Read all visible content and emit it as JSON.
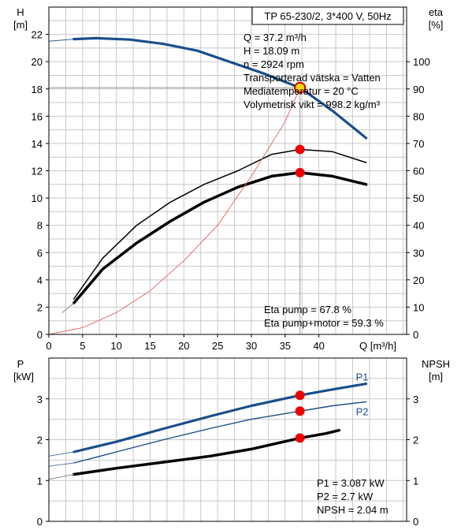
{
  "chart_data": [
    {
      "type": "line",
      "title": "TP 65-230/2, 3*400 V, 50Hz",
      "xlabel": "Q [m³/h]",
      "ylabel_left": [
        "H",
        "[m]"
      ],
      "ylabel_right": [
        "eta",
        "[%]"
      ],
      "xlim": [
        0,
        53
      ],
      "ylim_left": [
        0,
        24
      ],
      "ylim_right": [
        0,
        120
      ],
      "x_ticks": [
        0,
        5,
        10,
        15,
        20,
        25,
        30,
        35,
        40
      ],
      "y_ticks_left": [
        0,
        2,
        4,
        6,
        8,
        10,
        12,
        14,
        16,
        18,
        20,
        22
      ],
      "y_ticks_right": [
        0,
        10,
        20,
        30,
        40,
        50,
        60,
        70,
        80,
        90,
        100
      ],
      "grid": true,
      "series": [
        {
          "axis": "left",
          "color": "#1a4f8a",
          "width": 3.2,
          "points": [
            [
              3.7,
              21.65
            ],
            [
              7,
              21.72
            ],
            [
              12,
              21.62
            ],
            [
              17,
              21.3
            ],
            [
              22,
              20.8
            ],
            [
              27,
              19.95
            ],
            [
              32,
              19.1
            ],
            [
              37.2,
              18.09
            ],
            [
              42,
              16.4
            ],
            [
              47,
              14.4
            ]
          ]
        },
        {
          "axis": "left",
          "color": "#2b5f9c",
          "width": 1.0,
          "points": [
            [
              0,
              21.5
            ],
            [
              3.7,
              21.65
            ]
          ]
        },
        {
          "axis": "left",
          "color": "#888888",
          "width": 0.8,
          "points": [
            [
              0,
              18.09
            ],
            [
              37.2,
              18.09
            ]
          ]
        },
        {
          "axis": "right",
          "color": "#000000",
          "width": 1.5,
          "points": [
            [
              3.7,
              13
            ],
            [
              8,
              28
            ],
            [
              13,
              40
            ],
            [
              18,
              48.5
            ],
            [
              23,
              55
            ],
            [
              28,
              60
            ],
            [
              33,
              66
            ],
            [
              37.2,
              67.8
            ],
            [
              42,
              67
            ],
            [
              47,
              63
            ]
          ]
        },
        {
          "axis": "right",
          "color": "#000000",
          "width": 3.5,
          "points": [
            [
              3.7,
              11.5
            ],
            [
              8,
              24
            ],
            [
              13,
              33.5
            ],
            [
              18,
              41.5
            ],
            [
              23,
              48.5
            ],
            [
              28,
              54
            ],
            [
              33,
              58
            ],
            [
              37.2,
              59.3
            ],
            [
              42,
              58
            ],
            [
              47,
              55
            ]
          ]
        },
        {
          "axis": "right",
          "color": "#888888",
          "width": 1.0,
          "points": [
            [
              2,
              8
            ],
            [
              3.7,
              11.5
            ]
          ]
        },
        {
          "axis": "right",
          "color": "#e06060",
          "width": 0.9,
          "points": [
            [
              0,
              0
            ],
            [
              5,
              2.5
            ],
            [
              10,
              8
            ],
            [
              15,
              16
            ],
            [
              20,
              27
            ],
            [
              25,
              40
            ],
            [
              30,
              58
            ],
            [
              35,
              78
            ],
            [
              37.2,
              90.5
            ]
          ]
        },
        {
          "axis": "right",
          "color": "#888888",
          "width": 0.8,
          "points": [
            [
              37.2,
              90.5
            ],
            [
              37.2,
              0
            ]
          ]
        }
      ],
      "markers": [
        {
          "axis": "left",
          "x": 37.2,
          "y": 18.09,
          "style": "yellow"
        },
        {
          "axis": "right",
          "x": 37.2,
          "y": 67.8,
          "style": "red"
        },
        {
          "axis": "right",
          "x": 37.2,
          "y": 59.3,
          "style": "red"
        }
      ],
      "info_lines": [
        "Q = 37.2 m³/h",
        "H = 18.09 m",
        "n = 2924 rpm",
        "Transporterad vätska = Vatten",
        "Mediatemperatur = 20 °C",
        "Volymetrisk vikt = 998.2 kg/m³"
      ],
      "eta_lines": [
        "Eta pump = 67.8 %",
        "Eta pump+motor = 59.3 %"
      ]
    },
    {
      "type": "line",
      "ylabel_left": [
        "P",
        "[kW]"
      ],
      "ylabel_right": [
        "NPSH",
        "[m]"
      ],
      "xlim": [
        0,
        53
      ],
      "ylim_left": [
        0,
        4.0
      ],
      "ylim_right": [
        0,
        4.0
      ],
      "y_ticks_left": [
        0,
        1,
        2,
        3
      ],
      "y_ticks_right": [
        0,
        1,
        2,
        3
      ],
      "grid": true,
      "series": [
        {
          "name": "P1",
          "axis": "left",
          "color": "#1a4f8a",
          "width": 3.2,
          "points": [
            [
              3.7,
              1.7
            ],
            [
              10,
              1.95
            ],
            [
              17,
              2.27
            ],
            [
              24,
              2.58
            ],
            [
              30,
              2.83
            ],
            [
              37.2,
              3.087
            ],
            [
              42,
              3.23
            ],
            [
              47,
              3.37
            ]
          ]
        },
        {
          "axis": "left",
          "color": "#5a7fb0",
          "width": 1.0,
          "points": [
            [
              0,
              1.6
            ],
            [
              3.7,
              1.7
            ]
          ]
        },
        {
          "name": "P2",
          "axis": "left",
          "color": "#1a4f8a",
          "width": 1.4,
          "points": [
            [
              3.7,
              1.43
            ],
            [
              10,
              1.7
            ],
            [
              17,
              2.0
            ],
            [
              24,
              2.28
            ],
            [
              30,
              2.5
            ],
            [
              37.2,
              2.7
            ],
            [
              42,
              2.83
            ],
            [
              47,
              2.93
            ]
          ]
        },
        {
          "axis": "left",
          "color": "#5a7fb0",
          "width": 1.0,
          "points": [
            [
              0,
              1.35
            ],
            [
              3.7,
              1.43
            ]
          ]
        },
        {
          "axis": "right",
          "color": "#000000",
          "width": 3.5,
          "points": [
            [
              3.7,
              1.15
            ],
            [
              10,
              1.3
            ],
            [
              17,
              1.45
            ],
            [
              24,
              1.6
            ],
            [
              30,
              1.77
            ],
            [
              37.2,
              2.04
            ],
            [
              41,
              2.15
            ],
            [
              43,
              2.23
            ]
          ]
        },
        {
          "axis": "right",
          "color": "#888888",
          "width": 1.0,
          "points": [
            [
              0,
              1.03
            ],
            [
              3.7,
              1.15
            ]
          ]
        }
      ],
      "series_labels": [
        {
          "text": "P1",
          "x": 47,
          "y": 3.55,
          "color": "#1a4f8a"
        },
        {
          "text": "P2",
          "x": 47,
          "y": 2.7,
          "color": "#1a4f8a"
        }
      ],
      "markers": [
        {
          "axis": "left",
          "x": 37.2,
          "y": 3.087,
          "style": "red"
        },
        {
          "axis": "left",
          "x": 37.2,
          "y": 2.7,
          "style": "red"
        },
        {
          "axis": "right",
          "x": 37.2,
          "y": 2.04,
          "style": "red"
        }
      ],
      "info_lines": [
        "P1 = 3.087 kW",
        "P2 = 2.7 kW",
        "NPSH = 2.04 m"
      ]
    }
  ]
}
